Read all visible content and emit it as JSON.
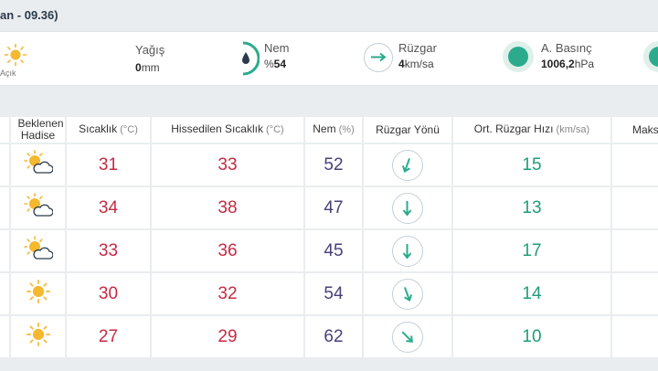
{
  "header": {
    "title_fragment": "an - 09.36)"
  },
  "current": {
    "condition": "Açık",
    "condition_icon": "sun-icon",
    "rain": {
      "label": "Yağış",
      "value": "0",
      "unit": "mm"
    },
    "humidity": {
      "label": "Nem",
      "prefix": "%",
      "value": "54"
    },
    "wind": {
      "label": "Rüzgar",
      "value": "4",
      "unit": "km/sa"
    },
    "pressure": {
      "label": "A. Basınç",
      "value": "1006,2",
      "unit": "hPa"
    }
  },
  "table": {
    "headers": {
      "hadise": "Beklenen Hadise",
      "temp": "Sıcaklık",
      "temp_unit": "(°C)",
      "feels": "Hissedilen Sıcaklık",
      "feels_unit": "(°C)",
      "hum": "Nem",
      "hum_unit": "(%)",
      "wind_dir": "Rüzgar Yönü",
      "wind_speed": "Ort. Rüzgar Hızı",
      "wind_speed_unit": "(km/sa)",
      "max": "Maks"
    },
    "rows": [
      {
        "icon": "partly-cloudy-icon",
        "temp": "31",
        "feels": "33",
        "hum": "52",
        "wind_dir_deg": 200,
        "speed": "15"
      },
      {
        "icon": "partly-cloudy-icon",
        "temp": "34",
        "feels": "38",
        "hum": "47",
        "wind_dir_deg": 180,
        "speed": "13"
      },
      {
        "icon": "partly-cloudy-icon",
        "temp": "33",
        "feels": "36",
        "hum": "45",
        "wind_dir_deg": 180,
        "speed": "17"
      },
      {
        "icon": "sun-icon",
        "temp": "30",
        "feels": "32",
        "hum": "54",
        "wind_dir_deg": 160,
        "speed": "14"
      },
      {
        "icon": "sun-icon",
        "temp": "27",
        "feels": "29",
        "hum": "62",
        "wind_dir_deg": 135,
        "speed": "10"
      }
    ]
  },
  "colors": {
    "temp": "#c52a43",
    "humidity": "#4a3f7a",
    "speed": "#1f9c7a",
    "accent": "#2bab8c",
    "sun": "#f5b82e"
  }
}
